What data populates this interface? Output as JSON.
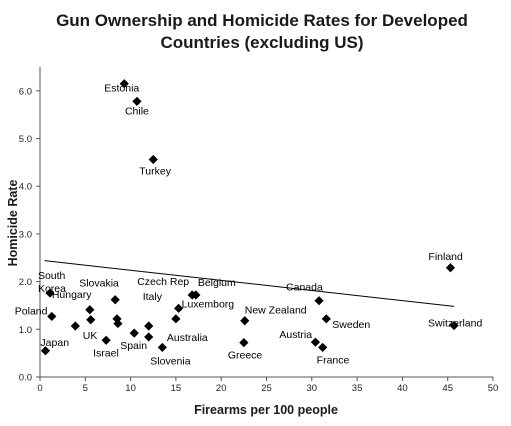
{
  "chart_data": {
    "type": "scatter",
    "title_lines": [
      "Gun Ownership and Homicide Rates for Developed",
      "Countries (excluding US)"
    ],
    "xlabel": "Firearms per 100 people",
    "ylabel": "Homicide Rate",
    "xlim": [
      0,
      50
    ],
    "ylim": [
      0,
      6.5
    ],
    "x_ticks": [
      0,
      5,
      10,
      15,
      20,
      25,
      30,
      35,
      40,
      45,
      50
    ],
    "y_ticks": [
      0,
      1,
      2,
      3,
      4,
      5,
      6
    ],
    "y_tick_labels": [
      "0.0",
      "1.0",
      "2.0",
      "3.0",
      "4.0",
      "5.0",
      "6.0"
    ],
    "x_tick_labels": [
      "0",
      "5",
      "10",
      "15",
      "20",
      "25",
      "30",
      "35",
      "40",
      "45",
      "50"
    ],
    "marker": "diamond",
    "marker_color": "#000000",
    "grid": false,
    "trendline": {
      "x": [
        0.5,
        45.7
      ],
      "y": [
        2.44,
        1.48
      ]
    },
    "points": [
      {
        "x": 9.3,
        "y": 6.15,
        "label": "Estonia"
      },
      {
        "x": 10.7,
        "y": 5.78,
        "label": "Chile"
      },
      {
        "x": 12.5,
        "y": 4.56,
        "label": "Turkey"
      },
      {
        "x": 1.1,
        "y": 1.76,
        "label": "South Korea"
      },
      {
        "x": 45.3,
        "y": 2.29,
        "label": "Finland"
      },
      {
        "x": 16.8,
        "y": 1.72,
        "label": "Czech Rep"
      },
      {
        "x": 17.2,
        "y": 1.72,
        "label": "Belgium"
      },
      {
        "x": 8.3,
        "y": 1.62,
        "label": "Slovakia"
      },
      {
        "x": 5.5,
        "y": 1.41,
        "label": "Hungary"
      },
      {
        "x": 15.3,
        "y": 1.44,
        "label": "Luxemborg"
      },
      {
        "x": 12.0,
        "y": 1.07,
        "label": "Italy"
      },
      {
        "x": 30.8,
        "y": 1.6,
        "label": "Canada"
      },
      {
        "x": 1.3,
        "y": 1.27,
        "label": "Poland"
      },
      {
        "x": 22.6,
        "y": 1.18,
        "label": "New Zealand"
      },
      {
        "x": 45.7,
        "y": 1.08,
        "label": "Switzerland"
      },
      {
        "x": 31.6,
        "y": 1.22,
        "label": "Sweden"
      },
      {
        "x": 15.0,
        "y": 1.22,
        "label": "Australia"
      },
      {
        "x": 5.6,
        "y": 1.2,
        "label": "UK"
      },
      {
        "x": 8.5,
        "y": 1.22,
        "label": ""
      },
      {
        "x": 8.6,
        "y": 1.12,
        "label": ""
      },
      {
        "x": 3.9,
        "y": 1.07,
        "label": ""
      },
      {
        "x": 10.4,
        "y": 0.92,
        "label": "Spain"
      },
      {
        "x": 12.0,
        "y": 0.84,
        "label": ""
      },
      {
        "x": 7.3,
        "y": 0.77,
        "label": "Israel"
      },
      {
        "x": 13.5,
        "y": 0.62,
        "label": "Slovenia"
      },
      {
        "x": 22.5,
        "y": 0.72,
        "label": "Greece"
      },
      {
        "x": 30.4,
        "y": 0.73,
        "label": "Austria"
      },
      {
        "x": 31.2,
        "y": 0.62,
        "label": "France"
      },
      {
        "x": 0.6,
        "y": 0.55,
        "label": "Japan"
      }
    ]
  }
}
